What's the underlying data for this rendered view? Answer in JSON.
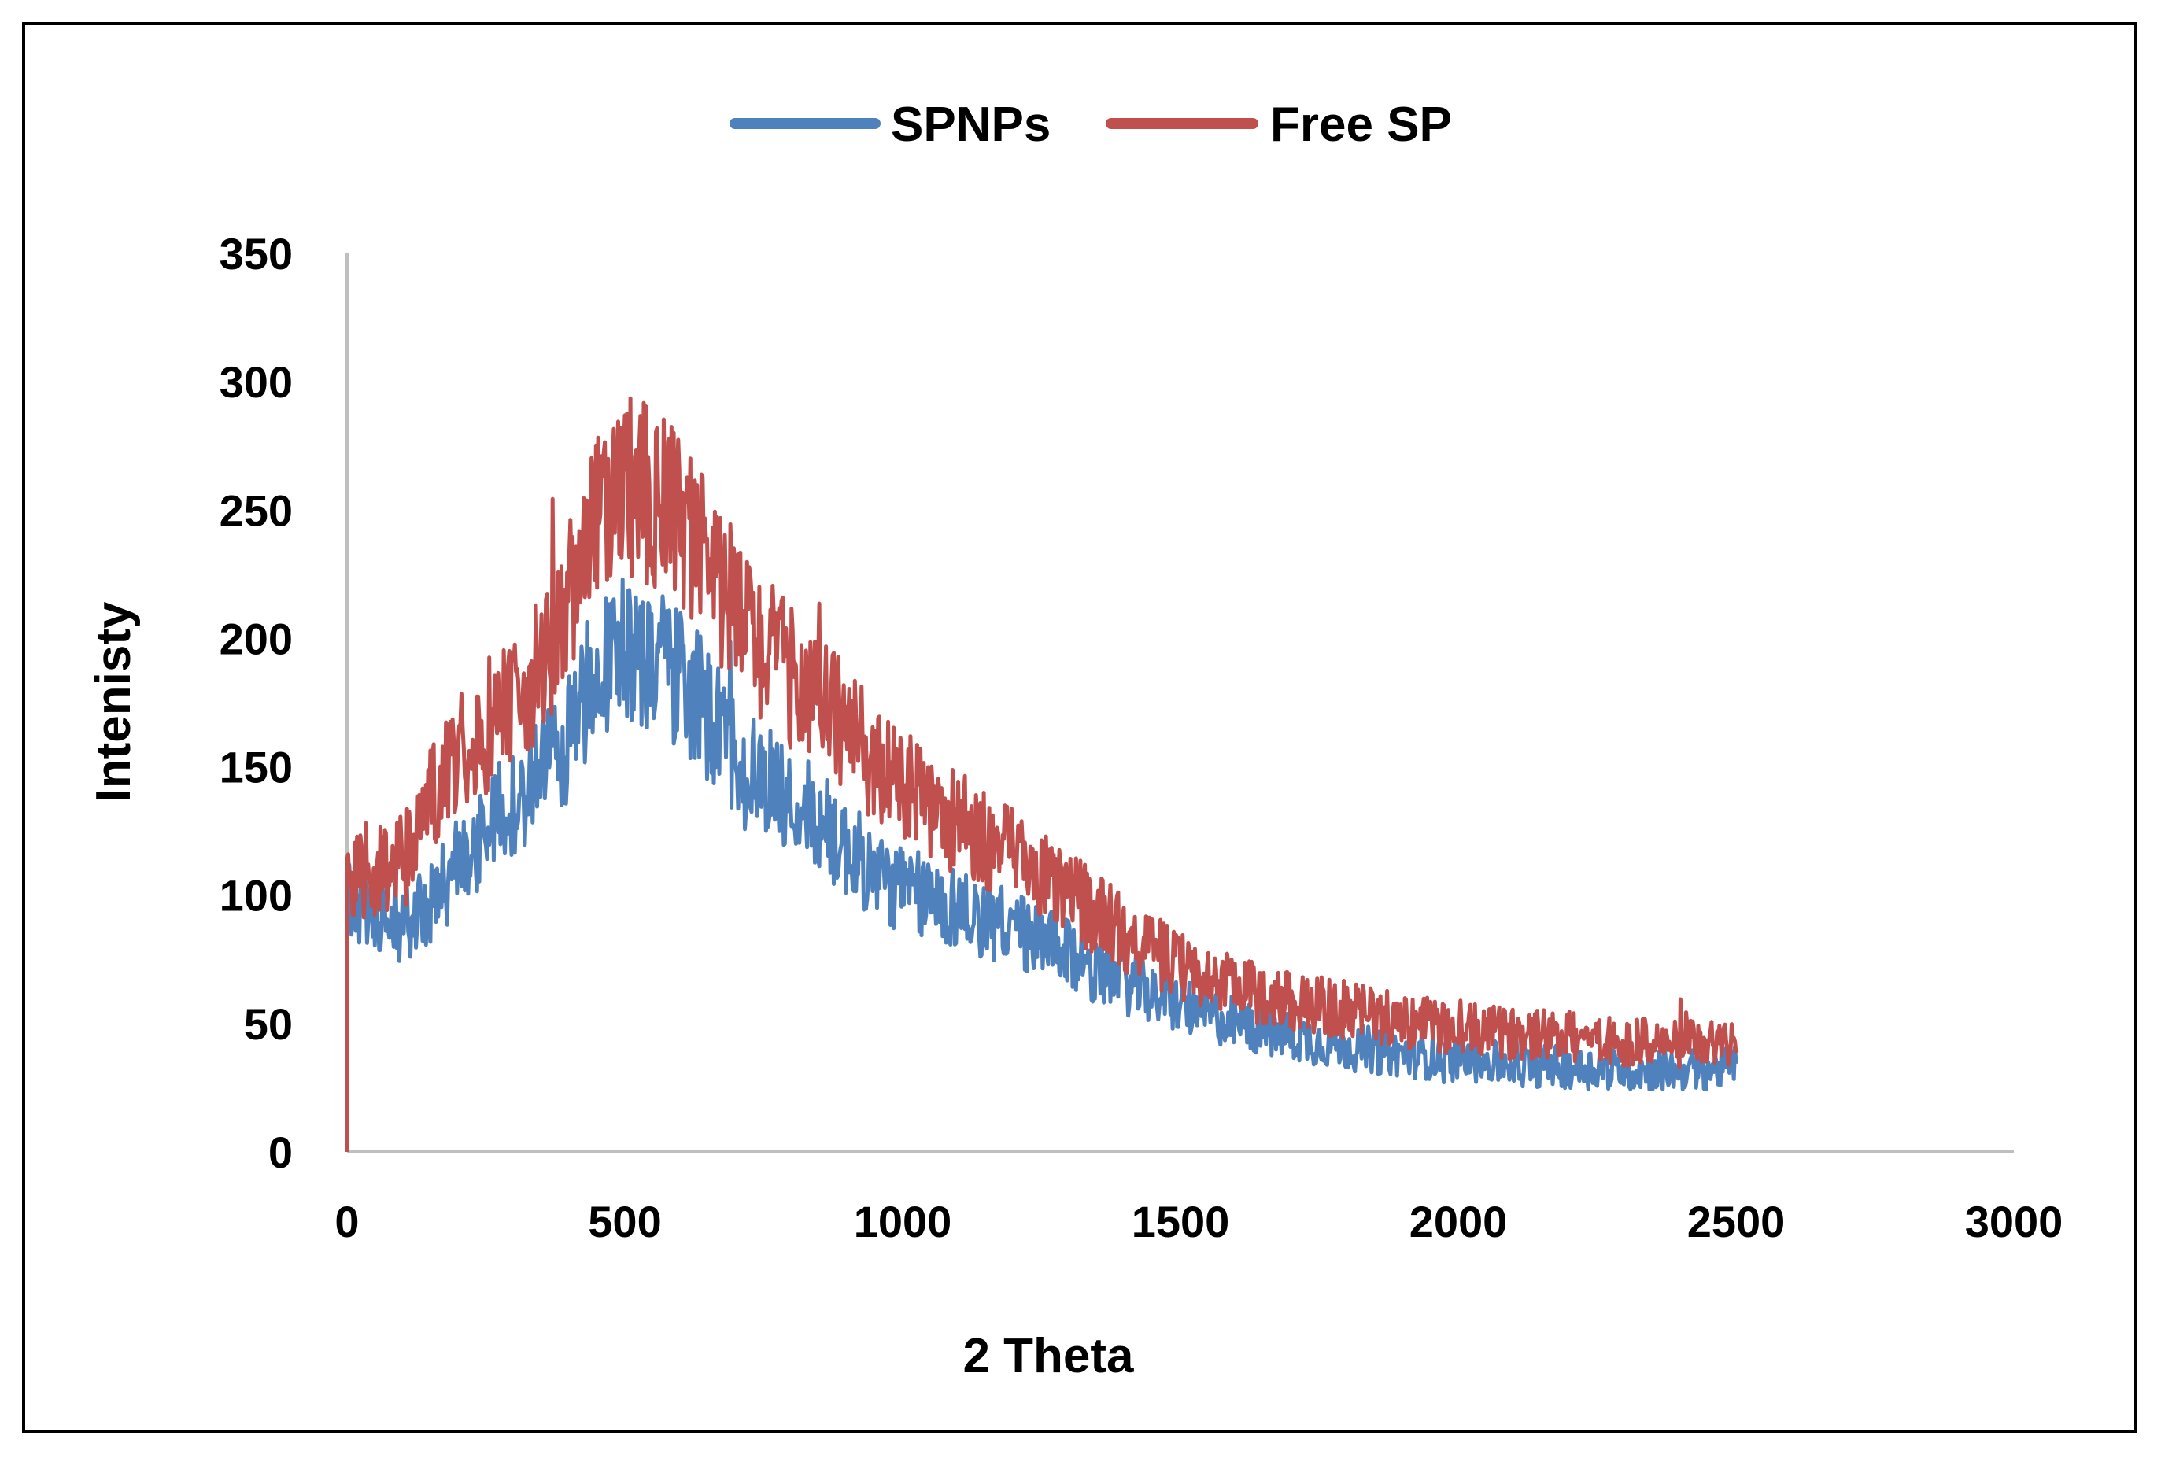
{
  "chart_data": {
    "type": "line",
    "title": "",
    "xlabel": "2 Theta",
    "ylabel": "Intenisty",
    "xlim": [
      0,
      3000
    ],
    "ylim": [
      0,
      350
    ],
    "x_ticks": [
      "0",
      "500",
      "1000",
      "1500",
      "2000",
      "2500",
      "3000"
    ],
    "y_ticks": [
      "0",
      "50",
      "100",
      "150",
      "200",
      "250",
      "300",
      "350"
    ],
    "legend_position": "top-center",
    "grid": false,
    "series": [
      {
        "name": "SPNPs",
        "color": "#4F81BD",
        "x": [
          0,
          50,
          100,
          150,
          200,
          250,
          300,
          350,
          400,
          450,
          500,
          550,
          600,
          650,
          700,
          750,
          800,
          850,
          900,
          950,
          1000,
          1100,
          1200,
          1300,
          1400,
          1500,
          1600,
          1700,
          1800,
          1900,
          2000,
          2100,
          2200,
          2300,
          2400,
          2500
        ],
        "values": [
          100,
          92,
          88,
          95,
          112,
          125,
          138,
          148,
          162,
          190,
          195,
          192,
          185,
          170,
          155,
          145,
          138,
          128,
          118,
          108,
          102,
          95,
          87,
          76,
          66,
          57,
          50,
          45,
          41,
          38,
          36,
          34,
          33,
          32,
          32,
          33
        ]
      },
      {
        "name": "Free SP",
        "color": "#C0504D",
        "x": [
          0,
          50,
          100,
          150,
          200,
          250,
          300,
          350,
          400,
          450,
          500,
          550,
          600,
          650,
          700,
          750,
          800,
          850,
          900,
          950,
          1000,
          1100,
          1200,
          1300,
          1400,
          1500,
          1600,
          1700,
          1800,
          1900,
          2000,
          2100,
          2200,
          2300,
          2400,
          2500
        ],
        "values": [
          105,
          108,
          118,
          138,
          155,
          165,
          175,
          190,
          215,
          245,
          258,
          255,
          245,
          228,
          210,
          196,
          185,
          178,
          165,
          150,
          142,
          128,
          115,
          100,
          85,
          72,
          64,
          59,
          55,
          51,
          48,
          46,
          45,
          43,
          42,
          42
        ]
      }
    ]
  }
}
